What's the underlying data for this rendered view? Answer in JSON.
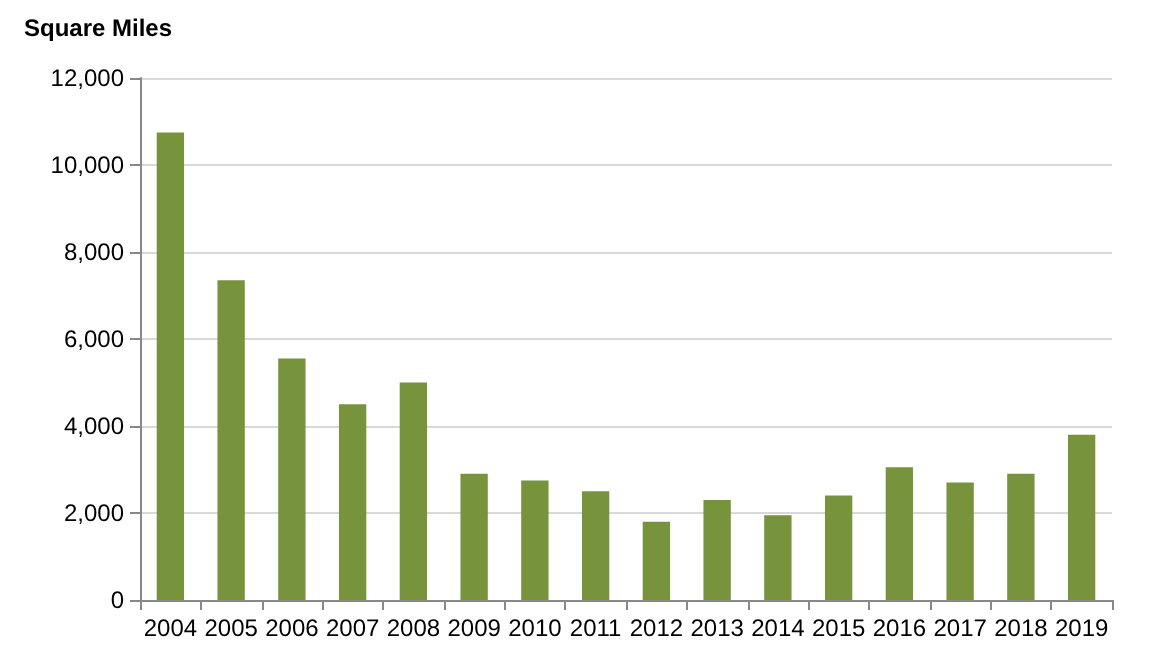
{
  "chart_data": {
    "type": "bar",
    "ylabel": "Square Miles",
    "categories": [
      "2004",
      "2005",
      "2006",
      "2007",
      "2008",
      "2009",
      "2010",
      "2011",
      "2012",
      "2013",
      "2014",
      "2015",
      "2016",
      "2017",
      "2018",
      "2019"
    ],
    "values": [
      10750,
      7350,
      5550,
      4500,
      5000,
      2900,
      2750,
      2500,
      1800,
      2300,
      1950,
      2400,
      3050,
      2700,
      2900,
      3800
    ],
    "color": "#77933c",
    "ylim": [
      0,
      12000
    ],
    "yticks": [
      0,
      {
        "value": 2000,
        "label": "2,000"
      },
      {
        "value": 4000,
        "label": "4,000"
      },
      {
        "value": 6000,
        "label": "6,000"
      },
      {
        "value": 8000,
        "label": "8,000"
      },
      {
        "value": 10000,
        "label": "10,000"
      },
      {
        "value": 12000,
        "label": "12,000"
      }
    ],
    "grid": "y"
  }
}
